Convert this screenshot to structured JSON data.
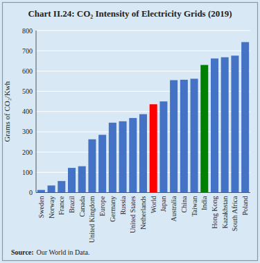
{
  "chart_data": {
    "type": "bar",
    "title": "Chart II.24: CO₂ Intensity of Electricity Grids (2019)",
    "y_label": "Grams of CO₂/Kwh",
    "annotations": [
      "Source:",
      "Our World in Data."
    ],
    "categories": [
      "Sweden",
      "Norway",
      "France",
      "Brazil",
      "Canada",
      "United Kingdom",
      "Europe",
      "Germany",
      "Russia",
      "United States",
      "Netherlands",
      "World",
      "Japan",
      "Australia",
      "China",
      "Taiwan",
      "India",
      "Hong Kong",
      "Kazakhstan",
      "South Africa",
      "Poland"
    ],
    "values": [
      13,
      35,
      57,
      122,
      130,
      263,
      285,
      345,
      352,
      368,
      387,
      436,
      450,
      555,
      557,
      562,
      630,
      662,
      668,
      676,
      743
    ],
    "colors": [
      "#4472C4",
      "#4472C4",
      "#4472C4",
      "#4472C4",
      "#4472C4",
      "#4472C4",
      "#4472C4",
      "#4472C4",
      "#4472C4",
      "#4472C4",
      "#4472C4",
      "#FF0000",
      "#4472C4",
      "#4472C4",
      "#4472C4",
      "#4472C4",
      "#008000",
      "#4472C4",
      "#4472C4",
      "#4472C4",
      "#4472C4"
    ],
    "ylim": [
      0,
      800
    ],
    "yticks": [
      0,
      100,
      200,
      300,
      400,
      500,
      600,
      700,
      800
    ],
    "grid": true
  }
}
